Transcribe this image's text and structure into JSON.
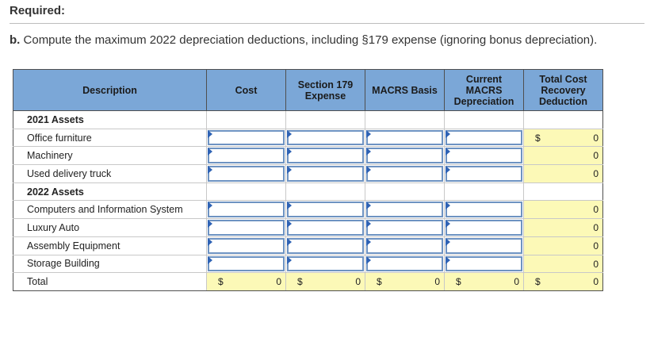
{
  "header": {
    "required": "Required:",
    "question_label": "b.",
    "question_text": "Compute the maximum 2022 depreciation deductions, including §179 expense (ignoring bonus depreciation)."
  },
  "table": {
    "columns": {
      "description": "Description",
      "cost": "Cost",
      "section179_l1": "Section 179",
      "section179_l2": "Expense",
      "macrs_basis": "MACRS Basis",
      "current_l1": "Current",
      "current_l2": "MACRS",
      "current_l3": "Depreciation",
      "total_l1": "Total Cost",
      "total_l2": "Recovery",
      "total_l3": "Deduction"
    },
    "rows": {
      "assets2021": "2021 Assets",
      "office_furniture": "Office furniture",
      "machinery": "Machinery",
      "used_delivery_truck": "Used delivery truck",
      "assets2022": "2022 Assets",
      "computers": "Computers and Information System",
      "luxury_auto": "Luxury Auto",
      "assembly_equipment": "Assembly Equipment",
      "storage_building": "Storage Building",
      "total": "Total"
    },
    "currency_symbol": "$",
    "deductions": {
      "office_furniture": "0",
      "machinery": "0",
      "used_delivery_truck": "0",
      "computers": "0",
      "luxury_auto": "0",
      "assembly_equipment": "0",
      "storage_building": "0"
    },
    "totals": {
      "cost": "0",
      "section179": "0",
      "macrs_basis": "0",
      "current": "0",
      "total_deduction": "0"
    }
  },
  "colors": {
    "header_bg": "#7ba7d7",
    "calc_bg": "#fcf9b7",
    "input_border": "#6e93c2"
  }
}
